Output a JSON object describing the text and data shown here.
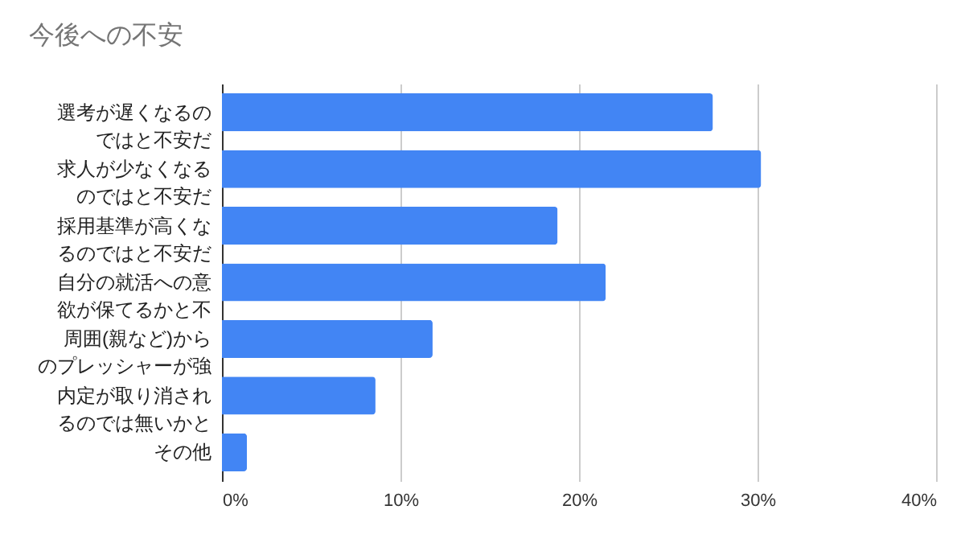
{
  "chart_data": {
    "type": "bar",
    "orientation": "horizontal",
    "title": "今後への不安",
    "categories": [
      "選考が遅くなるのではと不安だ",
      "求人が少なくなるのではと不安だ",
      "採用基準が高くなるのではと不安だ",
      "自分の就活への意欲が保てるかと不",
      "周囲(親など)からのプレッシャーが強",
      "内定が取り消されるのでは無いかと",
      "その他"
    ],
    "values": [
      27.5,
      30.2,
      18.8,
      21.5,
      11.8,
      8.6,
      1.4
    ],
    "color": "#4285f4",
    "xlim": [
      0,
      40
    ],
    "xticks": [
      {
        "value": 0,
        "label": "0%"
      },
      {
        "value": 10,
        "label": "10%"
      },
      {
        "value": 20,
        "label": "20%"
      },
      {
        "value": 30,
        "label": "30%"
      },
      {
        "value": 40,
        "label": "40%"
      }
    ],
    "grid": "x"
  }
}
